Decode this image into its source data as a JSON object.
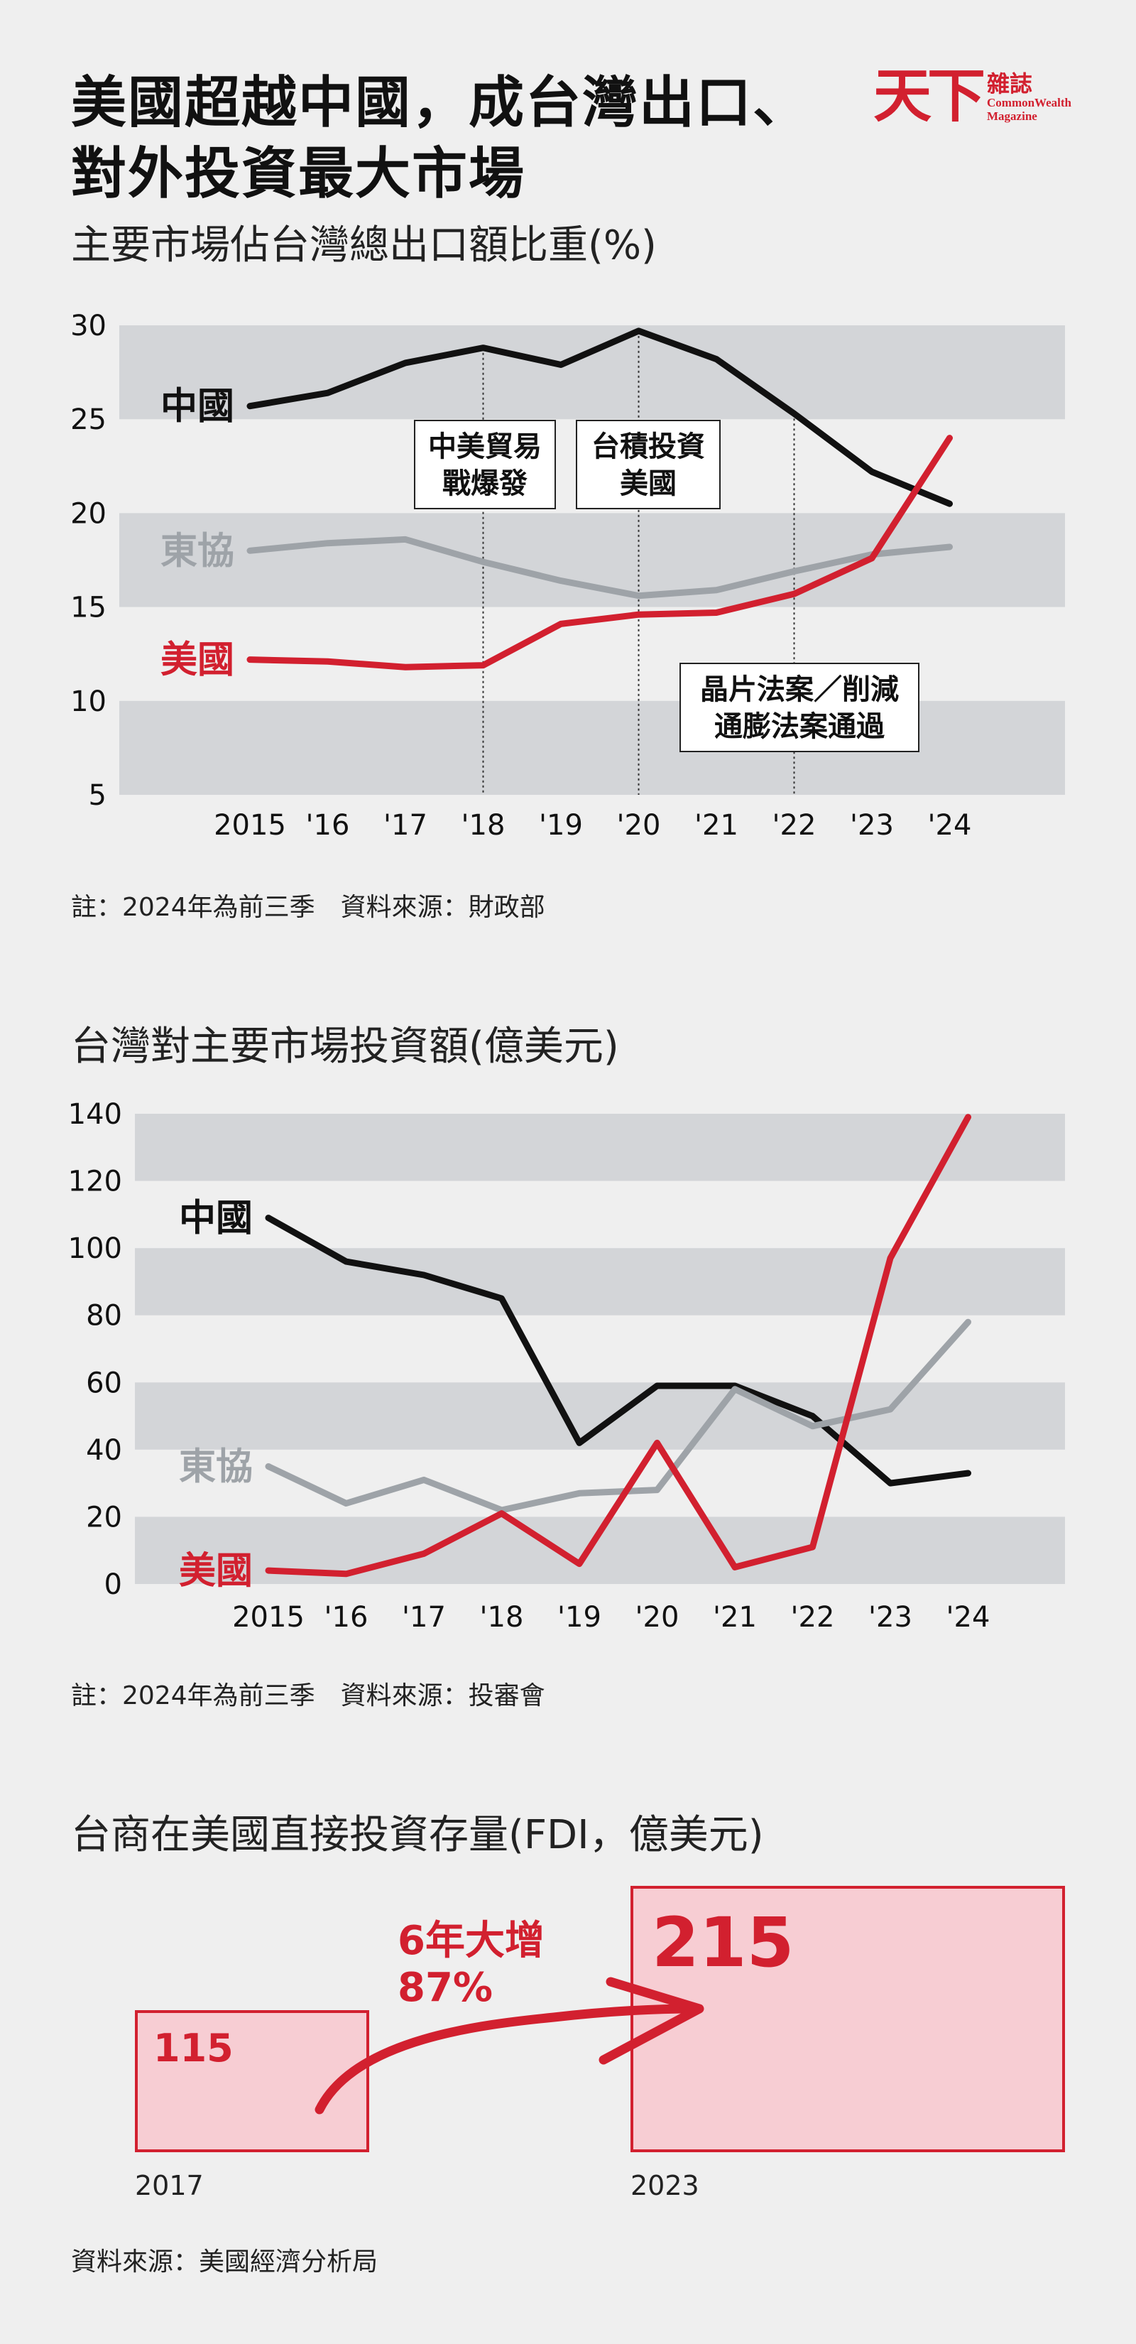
{
  "header": {
    "title_line1": "美國超越中國，成台灣出口、",
    "title_line2": "對外投資最大市場",
    "logo_mark": "天下",
    "logo_zh": "雜誌",
    "logo_en1": "CommonWealth",
    "logo_en2": "Magazine"
  },
  "chart1": {
    "subtitle": "主要市場佔台灣總出口額比重(%)",
    "note": "註：2024年為前三季　資料來源：財政部",
    "annotations": [
      {
        "lines": [
          "中美貿易",
          "戰爆發"
        ],
        "year": 2018
      },
      {
        "lines": [
          "台積投資",
          "美國"
        ],
        "year": 2020
      },
      {
        "lines": [
          "晶片法案／削減",
          "通膨法案通過"
        ],
        "year": 2022
      }
    ]
  },
  "chart2": {
    "subtitle": "台灣對主要市場投資額(億美元)",
    "note": "註：2024年為前三季　資料來源：投審會"
  },
  "chart3": {
    "subtitle": "台商在美國直接投資存量(FDI，億美元)",
    "arrow_label_1": "6年大增",
    "arrow_label_2": "87%",
    "source": "資料來源：美國經濟分析局"
  },
  "chart_data": [
    {
      "type": "line",
      "title": "主要市場佔台灣總出口額比重(%)",
      "x": [
        2015,
        2016,
        2017,
        2018,
        2019,
        2020,
        2021,
        2022,
        2023,
        2024
      ],
      "x_tick_labels": [
        "2015",
        "'16",
        "'17",
        "'18",
        "'19",
        "'20",
        "'21",
        "'22",
        "'23",
        "'24"
      ],
      "ylim": [
        5,
        30
      ],
      "y_ticks": [
        5,
        10,
        15,
        20,
        25,
        30
      ],
      "grid": "alternating bands",
      "series": [
        {
          "name": "中國",
          "color": "#111111",
          "values": [
            25.7,
            26.4,
            28.0,
            28.8,
            27.9,
            29.7,
            28.2,
            25.3,
            22.2,
            20.5
          ]
        },
        {
          "name": "東協",
          "color": "#9ea3a8",
          "values": [
            18.0,
            18.4,
            18.6,
            17.4,
            16.4,
            15.6,
            15.9,
            16.9,
            17.8,
            18.2
          ]
        },
        {
          "name": "美國",
          "color": "#d2202f",
          "values": [
            12.2,
            12.1,
            11.8,
            11.9,
            14.1,
            14.6,
            14.7,
            15.7,
            17.6,
            24.0
          ]
        }
      ]
    },
    {
      "type": "line",
      "title": "台灣對主要市場投資額(億美元)",
      "x": [
        2015,
        2016,
        2017,
        2018,
        2019,
        2020,
        2021,
        2022,
        2023,
        2024
      ],
      "x_tick_labels": [
        "2015",
        "'16",
        "'17",
        "'18",
        "'19",
        "'20",
        "'21",
        "'22",
        "'23",
        "'24"
      ],
      "ylim": [
        0,
        140
      ],
      "y_ticks": [
        0,
        20,
        40,
        60,
        80,
        100,
        120,
        140
      ],
      "grid": "alternating bands",
      "series": [
        {
          "name": "中國",
          "color": "#111111",
          "values": [
            109,
            96,
            92,
            85,
            42,
            59,
            59,
            50,
            30,
            33
          ]
        },
        {
          "name": "東協",
          "color": "#9ea3a8",
          "values": [
            35,
            24,
            31,
            22,
            27,
            28,
            58,
            47,
            52,
            78
          ]
        },
        {
          "name": "美國",
          "color": "#d2202f",
          "values": [
            4,
            3,
            9,
            21,
            6,
            42,
            5,
            11,
            97,
            139
          ]
        }
      ]
    },
    {
      "type": "bar",
      "title": "台商在美國直接投資存量(FDI，億美元)",
      "categories": [
        "2017",
        "2023"
      ],
      "values": [
        115,
        215
      ],
      "color": "#d2202f"
    }
  ]
}
